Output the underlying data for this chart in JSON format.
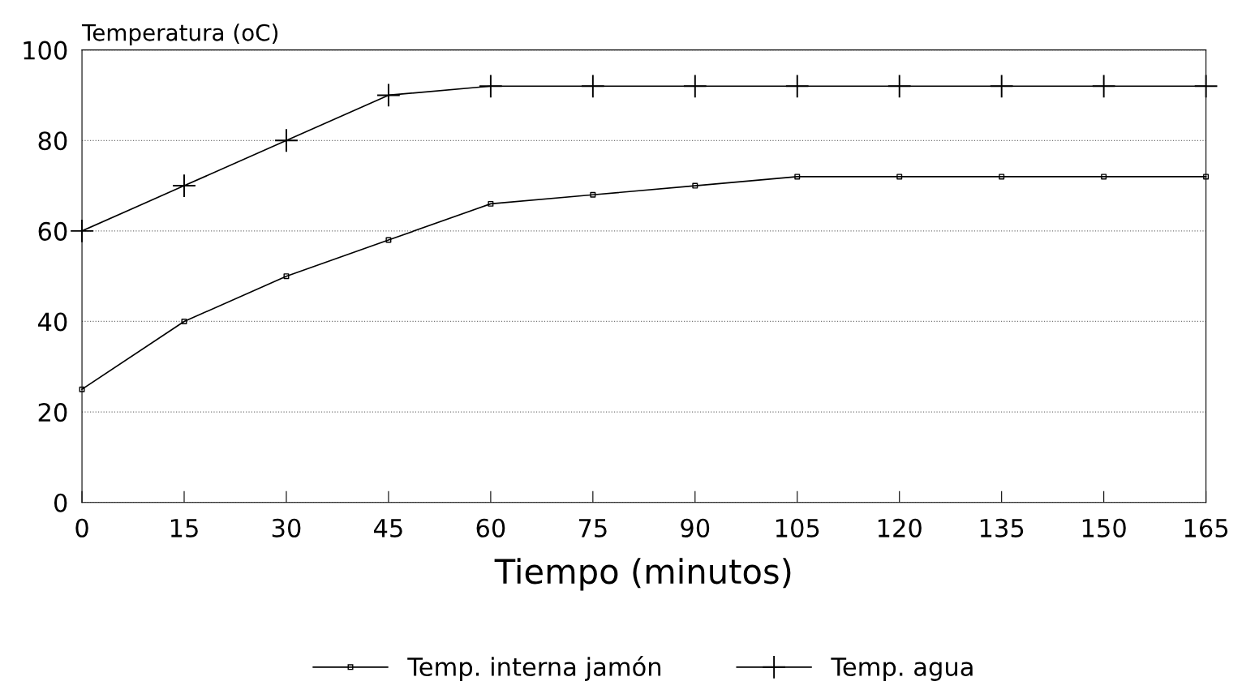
{
  "chart_data": {
    "type": "line",
    "ylabel": "Temperatura (oC)",
    "xlabel": "Tiempo (minutos)",
    "x": [
      0,
      15,
      30,
      45,
      60,
      75,
      90,
      105,
      120,
      135,
      150,
      165
    ],
    "series": [
      {
        "name": "Temp. interna jamón",
        "color": "#000000",
        "marker": "square",
        "values": [
          25,
          40,
          50,
          58,
          66,
          68,
          70,
          72,
          72,
          72,
          72,
          72
        ]
      },
      {
        "name": "Temp. agua",
        "color": "#000000",
        "marker": "cross",
        "values": [
          60,
          70,
          80,
          90,
          92,
          92,
          92,
          92,
          92,
          92,
          92,
          92
        ]
      }
    ],
    "xlim": [
      0,
      165
    ],
    "xticks": [
      0,
      15,
      30,
      45,
      60,
      75,
      90,
      105,
      120,
      135,
      150,
      165
    ],
    "ylim": [
      0,
      100
    ],
    "yticks": [
      0,
      20,
      40,
      60,
      80,
      100
    ],
    "grid": "y",
    "legend": "bottom",
    "line_style": "solid"
  }
}
